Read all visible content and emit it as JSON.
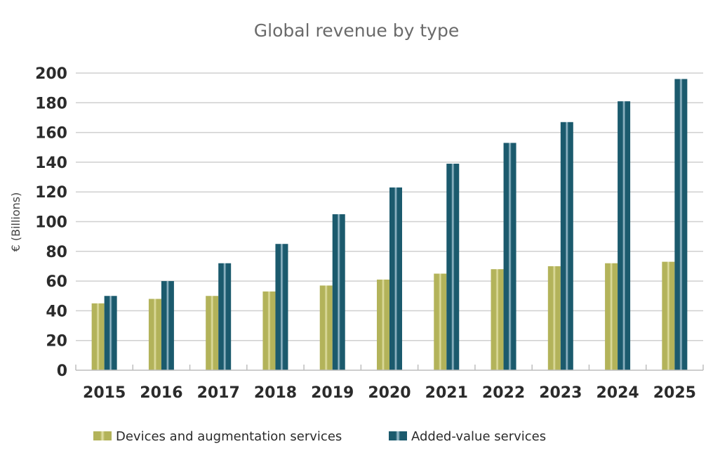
{
  "chart_data": {
    "type": "bar",
    "title": "Global revenue by type",
    "xlabel": "",
    "ylabel": "€ (Billions)",
    "ylim": [
      0,
      200
    ],
    "yticks": [
      0,
      20,
      40,
      60,
      80,
      100,
      120,
      140,
      160,
      180,
      200
    ],
    "grid": true,
    "legend_position": "bottom",
    "categories": [
      "2015",
      "2016",
      "2017",
      "2018",
      "2019",
      "2020",
      "2021",
      "2022",
      "2023",
      "2024",
      "2025"
    ],
    "series": [
      {
        "name": "Devices and augmentation services",
        "color": "#b3b35a",
        "highlight": "#e4e2a8",
        "values": [
          45,
          48,
          50,
          53,
          57,
          61,
          65,
          68,
          70,
          72,
          73
        ]
      },
      {
        "name": "Added-value services",
        "color": "#1b5a6d",
        "highlight": "#a9c8d6",
        "values": [
          50,
          60,
          72,
          85,
          105,
          123,
          139,
          153,
          167,
          181,
          196
        ]
      }
    ]
  }
}
